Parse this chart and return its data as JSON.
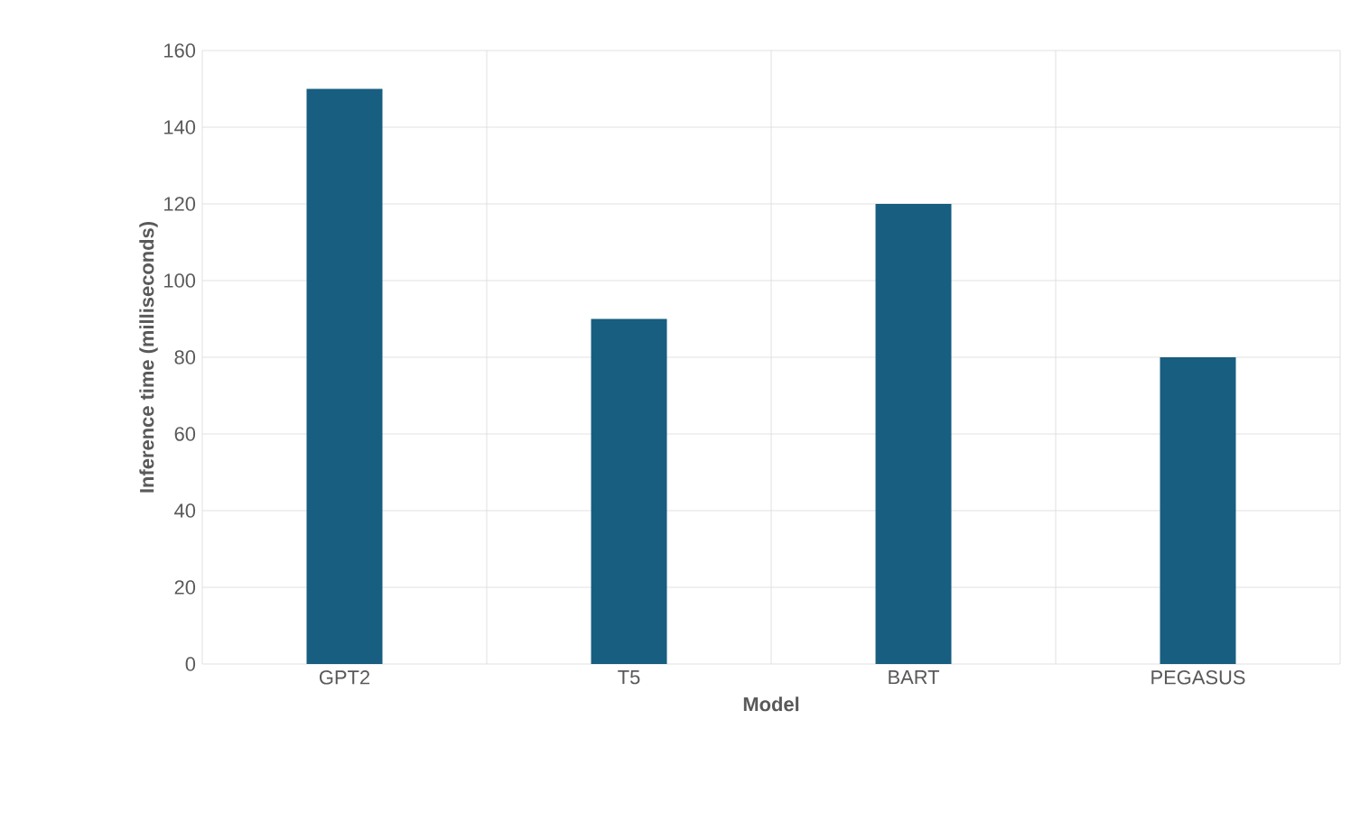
{
  "chart_data": {
    "type": "bar",
    "xlabel": "Model",
    "ylabel": "Inference time (milliseconds)",
    "categories": [
      "GPT2",
      "T5",
      "BART",
      "PEGASUS"
    ],
    "values": [
      150,
      90,
      120,
      80
    ],
    "color": "#175e80",
    "ylim": [
      0,
      160
    ],
    "yticks": [
      0,
      20,
      40,
      60,
      80,
      100,
      120,
      140,
      160
    ],
    "grid": true
  }
}
